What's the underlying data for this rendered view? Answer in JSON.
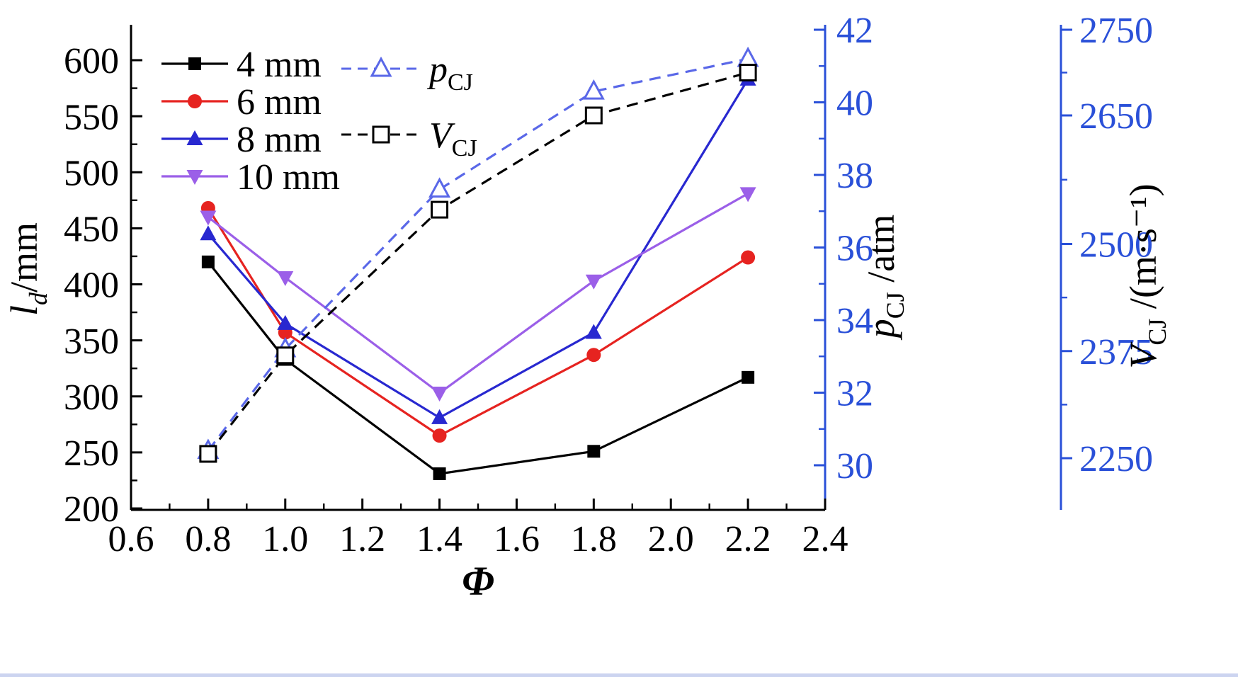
{
  "figure": {
    "background": "#ffffff",
    "axis_blue": "#2a50d8",
    "axis_black": "#000000"
  },
  "chart_data": {
    "type": "line",
    "title": "",
    "x_label": "Φ",
    "x_range": [
      0.6,
      2.4
    ],
    "x_ticks": [
      0.6,
      0.8,
      1.0,
      1.2,
      1.4,
      1.6,
      1.8,
      2.0,
      2.2,
      2.4
    ],
    "x": [
      0.8,
      1.0,
      1.4,
      1.8,
      2.2
    ],
    "grid": false,
    "legend_position": "top-left-inside",
    "left_axis": {
      "label_main": "l",
      "label_sub": "d",
      "label_sub_italic": true,
      "label_rest": "/mm",
      "ticks": [
        200,
        250,
        300,
        350,
        400,
        450,
        500,
        550,
        600
      ],
      "range": [
        200,
        633
      ],
      "color": "#000000"
    },
    "p_axis": {
      "label_main": "p",
      "label_sub": "CJ",
      "label_sub_italic": false,
      "label_rest": " /atm",
      "ticks": [
        30,
        32,
        34,
        36,
        38,
        40,
        42
      ],
      "range": [
        28.8,
        42.2
      ],
      "color": "#2a50d8"
    },
    "v_axis": {
      "label_main": "V",
      "label_sub": "CJ",
      "label_sub_italic": false,
      "label_rest": " /(m·s⁻¹)",
      "ticks": [
        2250,
        2375,
        2500,
        2650,
        2750
      ],
      "range": [
        2250,
        2780
      ],
      "color": "#2a50d8"
    },
    "series": [
      {
        "name": "4 mm",
        "axis": "left",
        "color": "#000000",
        "marker": "square-filled",
        "line": "solid",
        "values": [
          420,
          333,
          231,
          251,
          317
        ]
      },
      {
        "name": "6 mm",
        "axis": "left",
        "color": "#e62320",
        "marker": "circle-filled",
        "line": "solid",
        "values": [
          468,
          357,
          265,
          337,
          424
        ]
      },
      {
        "name": "8 mm",
        "axis": "left",
        "color": "#2828d0",
        "marker": "triangle-up-filled",
        "line": "solid",
        "values": [
          445,
          365,
          281,
          357,
          583
        ]
      },
      {
        "name": "10 mm",
        "axis": "left",
        "color": "#9b5fe8",
        "marker": "triangle-down-filled",
        "line": "solid",
        "values": [
          460,
          406,
          303,
          403,
          481
        ]
      },
      {
        "name": "p_CJ",
        "label_main": "p",
        "label_sub": "CJ",
        "axis": "p",
        "color": "#5a68e8",
        "marker": "triangle-up-open",
        "line": "dashed",
        "values": [
          30.4,
          33.2,
          37.6,
          40.3,
          41.2
        ]
      },
      {
        "name": "V_CJ",
        "label_main": "V",
        "label_sub": "CJ",
        "axis": "v",
        "color": "#000000",
        "marker": "square-open",
        "line": "dashed",
        "values": [
          2255,
          2370,
          2540,
          2650,
          2700
        ]
      }
    ],
    "legend": {
      "left_items": [
        "4 mm",
        "6 mm",
        "8 mm",
        "10 mm"
      ],
      "right_items": [
        "p_CJ",
        "V_CJ"
      ]
    }
  }
}
